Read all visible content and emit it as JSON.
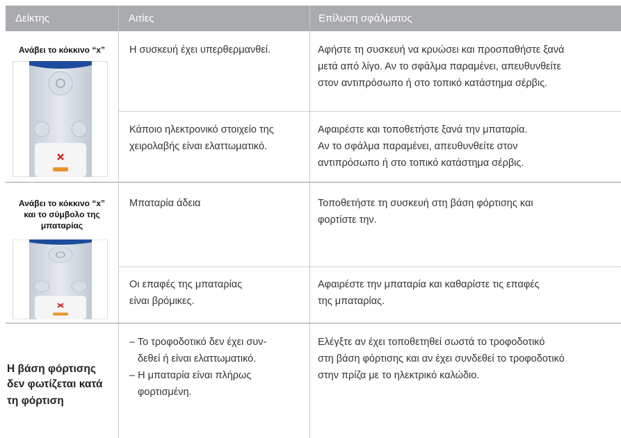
{
  "header": {
    "columns": [
      "Δείκτης",
      "Αιτίες",
      "Επίλυση σφάλματος"
    ]
  },
  "rows": [
    {
      "indicator": [
        "Ανάβει το κόκκινο “x”"
      ],
      "causes": [
        {
          "cause": [
            "Η συσκευή έχει υπερθερμανθεί."
          ],
          "solution": [
            "Αφήστε τη συσκευή να κρυώσει και προσπαθήστε ξανά",
            "μετά από λίγο. Αν το σφάλμα παραμένει, απευθυνθείτε",
            "στον αντιπρόσωπο ή στο τοπικό κατάστημα σέρβις."
          ]
        },
        {
          "cause": [
            "Κάποιο ηλεκτρονικό στοιχείο της",
            "χειρολαβής είναι ελαττωματικό."
          ],
          "solution": [
            "Αφαιρέστε και τοποθετήστε ξανά την μπαταρία.",
            "Αν το σφάλμα παραμένει, απευθυνθείτε στον",
            "αντιπρόσωπο ή στο τοπικό κατάστημα σέρβις."
          ]
        }
      ]
    },
    {
      "indicator": [
        "Ανάβει το κόκκινο “x”",
        "και το σύμβολο της",
        "μπαταρίας"
      ],
      "causes": [
        {
          "cause": [
            "Μπαταρία άδεια"
          ],
          "solution": [
            "Τοποθετήστε τη συσκευή στη βάση φόρτισης και",
            "φορτίστε την."
          ]
        },
        {
          "cause": [
            "Οι επαφές της μπαταρίας",
            "είναι βρόμικες."
          ],
          "solution": [
            "Αφαιρέστε την μπαταρία και καθαρίστε τις επαφές",
            "της μπαταρίας."
          ]
        }
      ]
    },
    {
      "indicator": [
        "Η βάση φόρτισης",
        "δεν φωτίζεται κατά",
        "τη φόρτιση"
      ],
      "causes": [
        {
          "cause": [
            "– Το τροφοδοτικό δεν έχει συν-",
            "δεθεί ή είναι ελαττωματικό.",
            "– Η μπαταρία είναι πλήρως",
            "φορτισμένη."
          ],
          "solution": [
            "Ελέγξτε αν έχει τοποθετηθεί σωστά το τροφοδοτικό",
            "στη βάση φόρτισης και αν έχει συνδεθεί το τροφοδοτικό",
            "στην πρίζα με το ηλεκτρικό καλώδιο."
          ]
        }
      ]
    }
  ]
}
